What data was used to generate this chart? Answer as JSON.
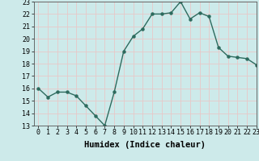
{
  "x": [
    0,
    1,
    2,
    3,
    4,
    5,
    6,
    7,
    8,
    9,
    10,
    11,
    12,
    13,
    14,
    15,
    16,
    17,
    18,
    19,
    20,
    21,
    22,
    23
  ],
  "y": [
    16.0,
    15.3,
    15.7,
    15.7,
    15.4,
    14.6,
    13.8,
    13.0,
    15.7,
    19.0,
    20.2,
    20.8,
    22.0,
    22.0,
    22.1,
    23.0,
    21.6,
    22.1,
    21.8,
    19.3,
    18.6,
    18.5,
    18.4,
    17.9
  ],
  "line_color": "#2d6b5e",
  "bg_color": "#cdeaea",
  "grid_color": "#e8c8c8",
  "xlabel": "Humidex (Indice chaleur)",
  "ylim": [
    13,
    23
  ],
  "xlim": [
    -0.5,
    23
  ],
  "yticks": [
    13,
    14,
    15,
    16,
    17,
    18,
    19,
    20,
    21,
    22,
    23
  ],
  "xticks": [
    0,
    1,
    2,
    3,
    4,
    5,
    6,
    7,
    8,
    9,
    10,
    11,
    12,
    13,
    14,
    15,
    16,
    17,
    18,
    19,
    20,
    21,
    22,
    23
  ],
  "marker": "o",
  "markersize": 2.2,
  "linewidth": 1.0,
  "xlabel_fontsize": 7.5,
  "tick_fontsize": 6.0
}
